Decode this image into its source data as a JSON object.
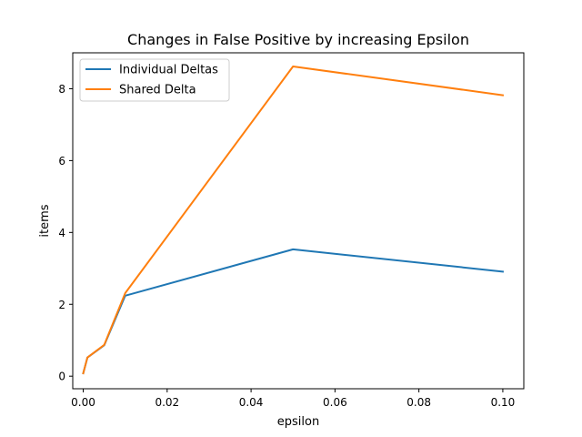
{
  "chart_data": {
    "type": "line",
    "title": "Changes in False Positive by increasing Epsilon",
    "xlabel": "epsilon",
    "ylabel": "items",
    "xlim": [
      -0.0025,
      0.105
    ],
    "ylim": [
      -0.35,
      9.0
    ],
    "x_ticks": [
      {
        "value": 0.0,
        "label": "0.00"
      },
      {
        "value": 0.02,
        "label": "0.02"
      },
      {
        "value": 0.04,
        "label": "0.04"
      },
      {
        "value": 0.06,
        "label": "0.06"
      },
      {
        "value": 0.08,
        "label": "0.08"
      },
      {
        "value": 0.1,
        "label": "0.10"
      }
    ],
    "y_ticks": [
      {
        "value": 0,
        "label": "0"
      },
      {
        "value": 2,
        "label": "2"
      },
      {
        "value": 4,
        "label": "4"
      },
      {
        "value": 6,
        "label": "6"
      },
      {
        "value": 8,
        "label": "8"
      }
    ],
    "grid": false,
    "legend_position": "top-left",
    "x": [
      0.0,
      0.001,
      0.005,
      0.01,
      0.05,
      0.1
    ],
    "series": [
      {
        "name": "Individual Deltas",
        "color": "#1f77b4",
        "values": [
          0.08,
          0.52,
          0.86,
          2.24,
          3.53,
          2.91
        ]
      },
      {
        "name": "Shared Delta",
        "color": "#ff7f0e",
        "values": [
          0.08,
          0.52,
          0.87,
          2.31,
          8.62,
          7.82
        ]
      }
    ]
  }
}
